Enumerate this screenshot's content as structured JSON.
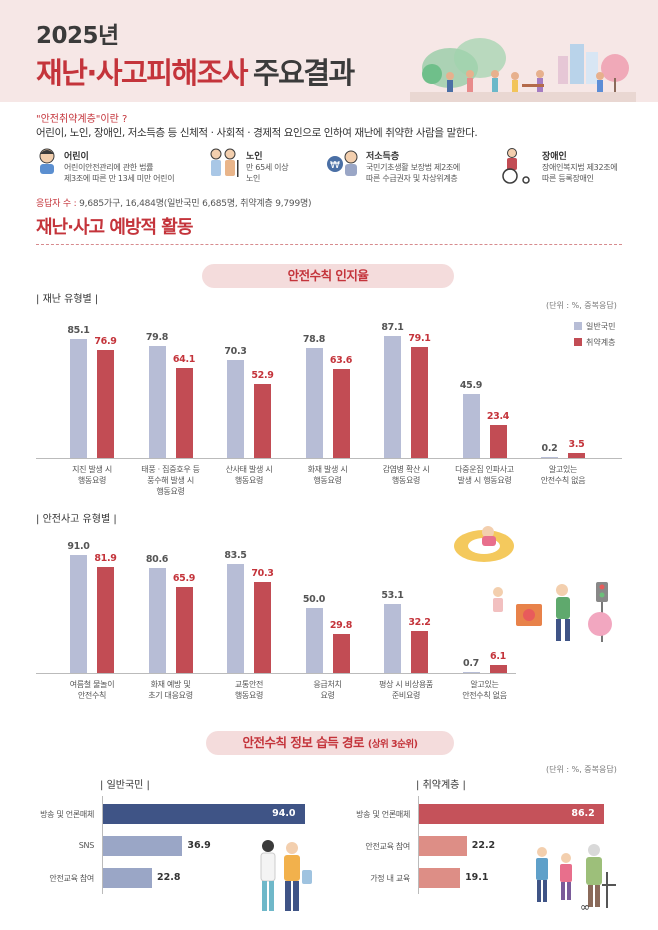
{
  "header": {
    "year": "2025년",
    "title_red": "재난·사고피해조사",
    "title_dark": "주요결과"
  },
  "definition": {
    "question": "\"안전취약계층\"이란 ?",
    "answer": "어린이, 노인, 장애인, 저소득층 등 신체적 · 사회적 · 경제적 요인으로 인하여 재난에 취약한 사람을 말한다."
  },
  "groups": [
    {
      "name": "어린이",
      "desc": [
        "어린이안전관리에 관한 법률",
        "제3조에 따른 만 13세 미만 어린이"
      ],
      "icon": "child-icon"
    },
    {
      "name": "노인",
      "desc": [
        "만 65세 이상",
        "노인"
      ],
      "icon": "elderly-icon"
    },
    {
      "name": "저소득층",
      "desc": [
        "국민기초생활 보장법 제2조에",
        "따른 수급권자 및 차상위계층"
      ],
      "icon": "won-icon"
    },
    {
      "name": "장애인",
      "desc": [
        "장애인복지법 제32조에",
        "따른 등록장애인"
      ],
      "icon": "wheelchair-icon"
    }
  ],
  "respondents": {
    "label": "응답자 수 :",
    "text": "9,685가구, 16,484명(일반국민 6,685명, 취약계층 9,799명)"
  },
  "section_title": "재난·사고 예방적 활동",
  "pill_awareness": "안전수칙 인지율",
  "pill_sources": {
    "main": "안전수칙 정보 습득 경로",
    "sub": "(상위 3순위)"
  },
  "legend": {
    "general": "일반국민",
    "vulnerable": "취약계층"
  },
  "colors": {
    "accent": "#c4343b",
    "general_bar": "#b7bdd6",
    "vulnerable_bar": "#c24c54",
    "general_top_bar": "#3f5486",
    "general_other_bar": "#9aa6c6",
    "vulnerable_top_bar": "#c5525a",
    "vulnerable_other_bar": "#dd8e86"
  },
  "chart_data": [
    {
      "type": "bar",
      "title": "재난 유형별",
      "unit": "(단위 : %, 중복응답)",
      "categories": [
        [
          "지진 발생 시",
          "행동요령"
        ],
        [
          "태풍 · 집중호우 등",
          "풍수해 발생 시",
          "행동요령"
        ],
        [
          "산사태 발생 시",
          "행동요령"
        ],
        [
          "화재 발생 시",
          "행동요령"
        ],
        [
          "감염병 확산 시",
          "행동요령"
        ],
        [
          "다중운집 인파사고",
          "발생 시 행동요령"
        ],
        [
          "알고있는",
          "안전수칙 없음"
        ]
      ],
      "series": [
        {
          "name": "일반국민",
          "values": [
            85.1,
            79.8,
            70.3,
            78.8,
            87.1,
            45.9,
            0.2
          ],
          "labels": [
            "85.1",
            "79.8",
            "70.3",
            "78.8",
            "87.1",
            "45.9",
            "0.2"
          ]
        },
        {
          "name": "취약계층",
          "values": [
            76.9,
            64.1,
            52.9,
            63.6,
            79.1,
            23.4,
            3.5
          ],
          "labels": [
            "76.9",
            "64.1",
            "52.9",
            "63.6",
            "79.1",
            "23.4",
            "3.5"
          ]
        }
      ],
      "ylim": [
        0,
        100
      ]
    },
    {
      "type": "bar",
      "title": "안전사고 유형별",
      "categories": [
        [
          "여름철 물놀이",
          "안전수칙"
        ],
        [
          "화재 예방 및",
          "초기 대응요령"
        ],
        [
          "교통안전",
          "행동요령"
        ],
        [
          "응급처치",
          "요령"
        ],
        [
          "평상 시 비상용품",
          "준비요령"
        ],
        [
          "알고있는",
          "안전수칙 없음"
        ]
      ],
      "series": [
        {
          "name": "일반국민",
          "values": [
            91.0,
            80.6,
            83.5,
            50.0,
            53.1,
            0.7
          ],
          "labels": [
            "91.0",
            "80.6",
            "83.5",
            "50.0",
            "53.1",
            "0.7"
          ]
        },
        {
          "name": "취약계층",
          "values": [
            81.9,
            65.9,
            70.3,
            29.8,
            32.2,
            6.1
          ],
          "labels": [
            "81.9",
            "65.9",
            "70.3",
            "29.8",
            "32.2",
            "6.1"
          ]
        }
      ],
      "ylim": [
        0,
        100
      ]
    },
    {
      "type": "bar",
      "orientation": "horizontal",
      "title": "일반국민",
      "unit": "(단위 : %, 중복응답)",
      "categories": [
        "방송 및 언론매체",
        "SNS",
        "안전교육 참여"
      ],
      "values": [
        94.0,
        36.9,
        22.8
      ],
      "labels": [
        "94.0",
        "36.9",
        "22.8"
      ],
      "xlim": [
        0,
        100
      ]
    },
    {
      "type": "bar",
      "orientation": "horizontal",
      "title": "취약계층",
      "categories": [
        "방송 및 언론매체",
        "안전교육 참여",
        "가정 내 교육"
      ],
      "values": [
        86.2,
        22.2,
        19.1
      ],
      "labels": [
        "86.2",
        "22.2",
        "19.1"
      ],
      "xlim": [
        0,
        100
      ]
    }
  ]
}
